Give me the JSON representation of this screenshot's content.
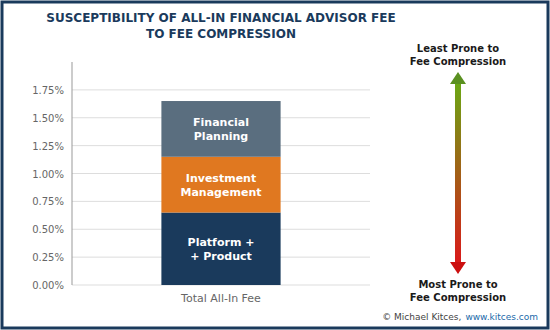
{
  "chart_data": {
    "type": "bar",
    "stacked": true,
    "title": "SUSCEPTIBILITY OF ALL-IN FINANCIAL ADVISOR FEE\nTO FEE COMPRESSION",
    "categories": [
      "Total All-In Fee"
    ],
    "series": [
      {
        "name": "Platform +\n+ Product",
        "color": "#1a3a5c",
        "values": [
          0.0065
        ]
      },
      {
        "name": "Investment\nManagement",
        "color": "#e07820",
        "values": [
          0.005
        ]
      },
      {
        "name": "Financial\nPlanning",
        "color": "#5a6e7f",
        "values": [
          0.005
        ]
      }
    ],
    "ylim": [
      0,
      0.02
    ],
    "yticks": [
      {
        "value": 0.0,
        "label": "0.00%"
      },
      {
        "value": 0.0025,
        "label": "0.25%"
      },
      {
        "value": 0.005,
        "label": "0.50%"
      },
      {
        "value": 0.0075,
        "label": "0.75%"
      },
      {
        "value": 0.01,
        "label": "1.00%"
      },
      {
        "value": 0.0125,
        "label": "1.25%"
      },
      {
        "value": 0.015,
        "label": "1.50%"
      },
      {
        "value": 0.0175,
        "label": "1.75%"
      }
    ],
    "grid": true,
    "annotations": [
      "Least Prone to\nFee Compression",
      "Most Prone to\nFee Compression",
      "© Michael Kitces,",
      "www.kitces.com"
    ]
  }
}
